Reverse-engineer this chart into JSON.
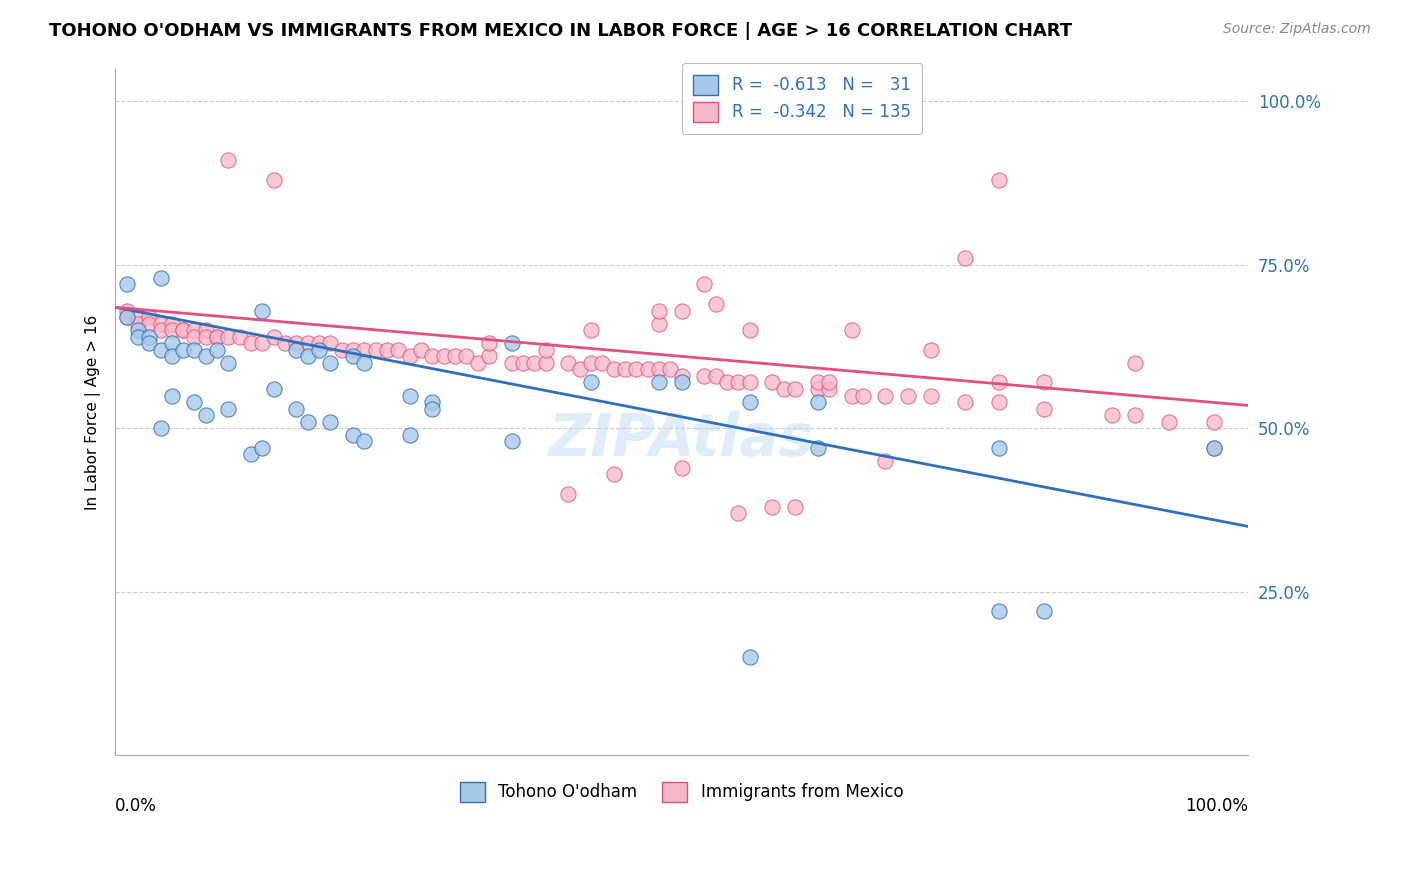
{
  "title": "TOHONO O'ODHAM VS IMMIGRANTS FROM MEXICO IN LABOR FORCE | AGE > 16 CORRELATION CHART",
  "source": "Source: ZipAtlas.com",
  "ylabel": "In Labor Force | Age > 16",
  "xlim": [
    0.0,
    1.0
  ],
  "ylim": [
    0.0,
    1.05
  ],
  "yticks": [
    0.25,
    0.5,
    0.75,
    1.0
  ],
  "ytick_labels": [
    "25.0%",
    "50.0%",
    "75.0%",
    "100.0%"
  ],
  "color_blue": "#a8c8e8",
  "color_pink": "#f4b8c8",
  "line_color_blue": "#3070b8",
  "line_color_pink": "#e05080",
  "watermark": "ZIPAtlas",
  "blue_R": -0.613,
  "blue_N": 31,
  "pink_R": -0.342,
  "pink_N": 135,
  "blue_line_x0": 0.0,
  "blue_line_y0": 0.685,
  "blue_line_x1": 1.0,
  "blue_line_y1": 0.35,
  "pink_line_x0": 0.0,
  "pink_line_y0": 0.685,
  "pink_line_x1": 1.0,
  "pink_line_y1": 0.535,
  "blue_points": [
    [
      0.01,
      0.72
    ],
    [
      0.01,
      0.67
    ],
    [
      0.02,
      0.65
    ],
    [
      0.02,
      0.64
    ],
    [
      0.03,
      0.64
    ],
    [
      0.03,
      0.63
    ],
    [
      0.04,
      0.73
    ],
    [
      0.04,
      0.62
    ],
    [
      0.05,
      0.63
    ],
    [
      0.05,
      0.61
    ],
    [
      0.06,
      0.62
    ],
    [
      0.07,
      0.62
    ],
    [
      0.08,
      0.61
    ],
    [
      0.09,
      0.62
    ],
    [
      0.1,
      0.6
    ],
    [
      0.13,
      0.68
    ],
    [
      0.14,
      0.56
    ],
    [
      0.16,
      0.62
    ],
    [
      0.17,
      0.61
    ],
    [
      0.18,
      0.62
    ],
    [
      0.19,
      0.6
    ],
    [
      0.21,
      0.61
    ],
    [
      0.22,
      0.6
    ],
    [
      0.26,
      0.55
    ],
    [
      0.28,
      0.54
    ],
    [
      0.35,
      0.63
    ],
    [
      0.42,
      0.57
    ],
    [
      0.48,
      0.57
    ],
    [
      0.5,
      0.57
    ],
    [
      0.56,
      0.54
    ],
    [
      0.62,
      0.54
    ],
    [
      0.56,
      0.15
    ],
    [
      0.78,
      0.22
    ],
    [
      0.82,
      0.22
    ],
    [
      0.62,
      0.47
    ],
    [
      0.78,
      0.47
    ],
    [
      0.97,
      0.47
    ],
    [
      0.04,
      0.5
    ],
    [
      0.05,
      0.55
    ],
    [
      0.07,
      0.54
    ],
    [
      0.08,
      0.52
    ],
    [
      0.1,
      0.53
    ],
    [
      0.12,
      0.46
    ],
    [
      0.13,
      0.47
    ],
    [
      0.16,
      0.53
    ],
    [
      0.17,
      0.51
    ],
    [
      0.19,
      0.51
    ],
    [
      0.21,
      0.49
    ],
    [
      0.22,
      0.48
    ],
    [
      0.26,
      0.49
    ],
    [
      0.28,
      0.53
    ],
    [
      0.35,
      0.48
    ]
  ],
  "pink_points": [
    [
      0.01,
      0.68
    ],
    [
      0.01,
      0.67
    ],
    [
      0.02,
      0.67
    ],
    [
      0.02,
      0.66
    ],
    [
      0.03,
      0.67
    ],
    [
      0.03,
      0.66
    ],
    [
      0.04,
      0.66
    ],
    [
      0.04,
      0.65
    ],
    [
      0.05,
      0.66
    ],
    [
      0.05,
      0.65
    ],
    [
      0.06,
      0.65
    ],
    [
      0.06,
      0.65
    ],
    [
      0.07,
      0.65
    ],
    [
      0.07,
      0.64
    ],
    [
      0.08,
      0.65
    ],
    [
      0.08,
      0.64
    ],
    [
      0.09,
      0.64
    ],
    [
      0.09,
      0.64
    ],
    [
      0.1,
      0.64
    ],
    [
      0.1,
      0.91
    ],
    [
      0.11,
      0.64
    ],
    [
      0.12,
      0.63
    ],
    [
      0.13,
      0.63
    ],
    [
      0.14,
      0.64
    ],
    [
      0.14,
      0.88
    ],
    [
      0.15,
      0.63
    ],
    [
      0.16,
      0.63
    ],
    [
      0.17,
      0.63
    ],
    [
      0.18,
      0.63
    ],
    [
      0.19,
      0.63
    ],
    [
      0.2,
      0.62
    ],
    [
      0.21,
      0.62
    ],
    [
      0.22,
      0.62
    ],
    [
      0.23,
      0.62
    ],
    [
      0.24,
      0.62
    ],
    [
      0.25,
      0.62
    ],
    [
      0.26,
      0.61
    ],
    [
      0.27,
      0.62
    ],
    [
      0.28,
      0.61
    ],
    [
      0.29,
      0.61
    ],
    [
      0.3,
      0.61
    ],
    [
      0.31,
      0.61
    ],
    [
      0.32,
      0.6
    ],
    [
      0.33,
      0.61
    ],
    [
      0.33,
      0.63
    ],
    [
      0.35,
      0.6
    ],
    [
      0.36,
      0.6
    ],
    [
      0.37,
      0.6
    ],
    [
      0.38,
      0.6
    ],
    [
      0.38,
      0.62
    ],
    [
      0.4,
      0.6
    ],
    [
      0.4,
      0.4
    ],
    [
      0.41,
      0.59
    ],
    [
      0.42,
      0.6
    ],
    [
      0.42,
      0.65
    ],
    [
      0.43,
      0.6
    ],
    [
      0.44,
      0.59
    ],
    [
      0.44,
      0.43
    ],
    [
      0.45,
      0.59
    ],
    [
      0.46,
      0.59
    ],
    [
      0.47,
      0.59
    ],
    [
      0.48,
      0.59
    ],
    [
      0.48,
      0.66
    ],
    [
      0.48,
      0.68
    ],
    [
      0.49,
      0.59
    ],
    [
      0.5,
      0.58
    ],
    [
      0.5,
      0.44
    ],
    [
      0.5,
      0.68
    ],
    [
      0.52,
      0.58
    ],
    [
      0.52,
      0.72
    ],
    [
      0.53,
      0.58
    ],
    [
      0.53,
      0.69
    ],
    [
      0.54,
      0.57
    ],
    [
      0.55,
      0.57
    ],
    [
      0.55,
      0.37
    ],
    [
      0.56,
      0.57
    ],
    [
      0.56,
      0.65
    ],
    [
      0.58,
      0.57
    ],
    [
      0.58,
      0.38
    ],
    [
      0.59,
      0.56
    ],
    [
      0.6,
      0.56
    ],
    [
      0.6,
      0.38
    ],
    [
      0.62,
      0.56
    ],
    [
      0.62,
      0.57
    ],
    [
      0.63,
      0.56
    ],
    [
      0.63,
      0.57
    ],
    [
      0.65,
      0.55
    ],
    [
      0.65,
      0.65
    ],
    [
      0.66,
      0.55
    ],
    [
      0.68,
      0.55
    ],
    [
      0.68,
      0.45
    ],
    [
      0.7,
      0.55
    ],
    [
      0.72,
      0.55
    ],
    [
      0.72,
      0.62
    ],
    [
      0.75,
      0.54
    ],
    [
      0.75,
      0.76
    ],
    [
      0.78,
      0.54
    ],
    [
      0.78,
      0.57
    ],
    [
      0.78,
      0.88
    ],
    [
      0.82,
      0.53
    ],
    [
      0.82,
      0.57
    ],
    [
      0.88,
      0.52
    ],
    [
      0.9,
      0.52
    ],
    [
      0.9,
      0.6
    ],
    [
      0.93,
      0.51
    ],
    [
      0.97,
      0.51
    ],
    [
      0.97,
      0.47
    ]
  ]
}
